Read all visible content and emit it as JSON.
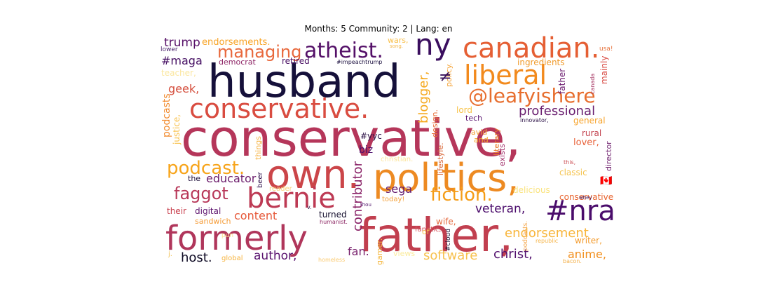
{
  "chart_data": {
    "type": "wordcloud",
    "title": "Months: 5 Community: 2 | Lang: en",
    "background": "#ffffff",
    "colormap": "inferno",
    "words": [
      {
        "text": "conservative,",
        "color": "#b5365a"
      },
      {
        "text": "husband",
        "color": "#15103a"
      },
      {
        "text": "father,",
        "color": "#c13f4f"
      },
      {
        "text": "own.",
        "color": "#cb4549"
      },
      {
        "text": "politics,",
        "color": "#ed8a22"
      },
      {
        "text": "formerly",
        "color": "#b0365b"
      },
      {
        "text": "canadian.",
        "color": "#e55f34"
      },
      {
        "text": "conservative.",
        "color": "#d94c40"
      },
      {
        "text": "liberal",
        "color": "#f28a1d"
      },
      {
        "text": "ny",
        "color": "#3a0e5e"
      },
      {
        "text": "bernie",
        "color": "#bd3a54"
      },
      {
        "text": "#nra",
        "color": "#4a0c6b"
      },
      {
        "text": "atheist.",
        "color": "#541068"
      },
      {
        "text": "@leafyishere",
        "color": "#e76e2e"
      },
      {
        "text": "fiction.",
        "color": "#f59d17"
      },
      {
        "text": "managing",
        "color": "#e8683c"
      },
      {
        "text": "podcast.",
        "color": "#f7a41a"
      },
      {
        "text": "faggot",
        "color": "#b8395a"
      },
      {
        "text": "blogger,",
        "color": "#f5a91f"
      },
      {
        "text": "contributor",
        "color": "#8a2468"
      },
      {
        "text": "endorsement",
        "color": "#f8b53a"
      },
      {
        "text": "professional",
        "color": "#681c6e"
      },
      {
        "text": "software",
        "color": "#f7c14d"
      },
      {
        "text": "christ,",
        "color": "#52106d"
      },
      {
        "text": "author,",
        "color": "#59126e"
      },
      {
        "text": "veteran,",
        "color": "#4b0c6b"
      },
      {
        "text": "educator",
        "color": "#6d1e6d"
      },
      {
        "text": "trump",
        "color": "#571068"
      },
      {
        "text": "host.",
        "color": "#0e0a24"
      },
      {
        "text": "fan.",
        "color": "#771f6c"
      },
      {
        "text": "content",
        "color": "#e6593a"
      },
      {
        "text": "anime,",
        "color": "#f28f1d"
      },
      {
        "text": "sega",
        "color": "#641a6e"
      },
      {
        "text": "#maga",
        "color": "#461063"
      },
      {
        "text": "geek,",
        "color": "#d5503f"
      },
      {
        "text": "endorsements.",
        "color": "#f8a426"
      },
      {
        "text": "retired",
        "color": "#4a1064"
      },
      {
        "text": "podcasts",
        "color": "#f28c30"
      },
      {
        "text": "justice,",
        "color": "#f8c04a"
      },
      {
        "text": "biz",
        "color": "#4b0e6b"
      },
      {
        "text": "ingredients",
        "color": "#f09a2a"
      },
      {
        "text": "father",
        "color": "#6a1a6e"
      },
      {
        "text": "mainly",
        "color": "#d84a42"
      },
      {
        "text": "lord",
        "color": "#f8c34a"
      },
      {
        "text": "tech",
        "color": "#5a1470"
      },
      {
        "text": "general",
        "color": "#f7a32a"
      },
      {
        "text": "rural",
        "color": "#c34450"
      },
      {
        "text": "lover,",
        "color": "#e8623a"
      },
      {
        "text": "director",
        "color": "#6e1f6d"
      },
      {
        "text": "classic",
        "color": "#f5c34e"
      },
      {
        "text": "conservative",
        "color": "#e8632e"
      },
      {
        "text": "delicious",
        "color": "#fae37e"
      },
      {
        "text": "wife,",
        "color": "#e4673b"
      },
      {
        "text": "digital",
        "color": "#5d146e"
      },
      {
        "text": "their",
        "color": "#c83f4d"
      },
      {
        "text": "turned",
        "color": "#130d2c"
      },
      {
        "text": "sandwich",
        "color": "#f59b36"
      },
      {
        "text": "writer,",
        "color": "#f39b2c"
      },
      {
        "text": "gamer.",
        "color": "#f4b73e"
      },
      {
        "text": "views",
        "color": "#faeb9e"
      },
      {
        "text": "global",
        "color": "#f6b33c"
      },
      {
        "text": "teacher,",
        "color": "#fbe7a0"
      },
      {
        "text": "democrat",
        "color": "#8e2566"
      },
      {
        "text": "wars,",
        "color": "#f8be47"
      },
      {
        "text": "lower",
        "color": "#451c68"
      },
      {
        "text": "#impeachtrump",
        "color": "#1c1040"
      },
      {
        "text": "usa!",
        "color": "#e7743e"
      },
      {
        "text": "things",
        "color": "#f6b64a"
      },
      {
        "text": "beer",
        "color": "#2e0f4a"
      },
      {
        "text": "the",
        "color": "#1f0f3a"
      },
      {
        "text": "reader",
        "color": "#f8d27a"
      },
      {
        "text": "today!",
        "color": "#f4a23c"
      },
      {
        "text": "fanatic,",
        "color": "#d5505a"
      },
      {
        "text": "humanist.",
        "color": "#8e2a66"
      },
      {
        "text": "lifestyle.",
        "color": "#d9693a"
      },
      {
        "text": "literary",
        "color": "#e87b2e"
      },
      {
        "text": "exists",
        "color": "#a1306a"
      },
      {
        "text": "avid",
        "color": "#f3a23a"
      },
      {
        "text": "and",
        "color": "#f5a32a"
      },
      {
        "text": "christian.",
        "color": "#fbe59c"
      },
      {
        "text": "innovator,",
        "color": "#2a1046"
      },
      {
        "text": "design.",
        "color": "#e8703a"
      },
      {
        "text": "policy.",
        "color": "#f4a032"
      },
      {
        "text": "#yyc",
        "color": "#2a0f45"
      },
      {
        "text": "of",
        "color": "#f7c54e"
      },
      {
        "text": "#cloud",
        "color": "#1a1033"
      },
      {
        "text": "podcasts.",
        "color": "#f4a64a"
      },
      {
        "text": "republic",
        "color": "#f6b54a"
      },
      {
        "text": "homeless",
        "color": "#faca72"
      },
      {
        "text": "bacon.",
        "color": "#f3b04a"
      },
      {
        "text": "whey",
        "color": "#3a1056"
      },
      {
        "text": "this,",
        "color": "#cc4f55"
      },
      {
        "text": "song.",
        "color": "#f3b74c"
      },
      {
        "text": "thou",
        "color": "#4e1068"
      },
      {
        "text": "v.",
        "color": "#2e1040"
      },
      {
        "text": "j.",
        "color": "#f1c35a"
      },
      {
        "text": "pun",
        "color": "#fbe08e"
      },
      {
        "text": "canada",
        "color": "#a3305f"
      },
      {
        "text": "≠",
        "color": "#38105a"
      },
      {
        "text": "🇨🇦",
        "color": "#e0573a"
      }
    ]
  }
}
